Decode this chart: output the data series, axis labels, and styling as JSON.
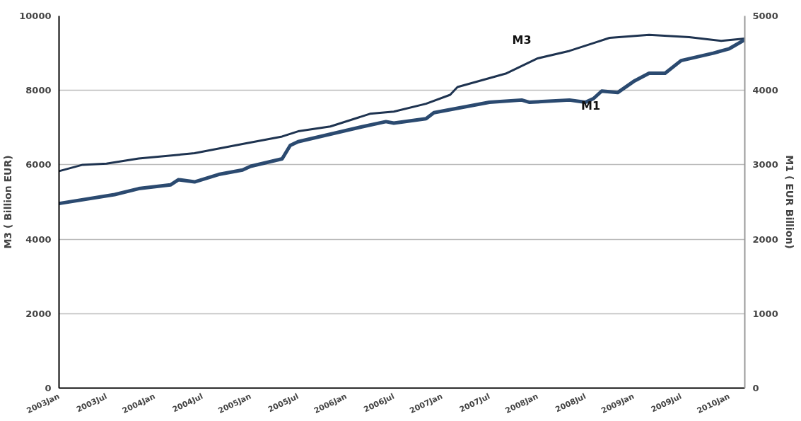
{
  "chart_data": {
    "type": "line",
    "ylabel": "M3 ( Billion EUR)",
    "y2label": "M1 ( EUR Billion)",
    "xlim": [
      "2003-01",
      "2010-03"
    ],
    "xticks": [
      {
        "value": "2003-01",
        "label": "2003Jan"
      },
      {
        "value": "2003-07",
        "label": "2003Jul"
      },
      {
        "value": "2004-01",
        "label": "2004Jan"
      },
      {
        "value": "2004-07",
        "label": "2004Jul"
      },
      {
        "value": "2005-01",
        "label": "2005Jan"
      },
      {
        "value": "2005-07",
        "label": "2005Jul"
      },
      {
        "value": "2006-01",
        "label": "2006Jan"
      },
      {
        "value": "2006-07",
        "label": "2006Jul"
      },
      {
        "value": "2007-01",
        "label": "2007Jan"
      },
      {
        "value": "2007-07",
        "label": "2007Jul"
      },
      {
        "value": "2008-01",
        "label": "2008Jan"
      },
      {
        "value": "2008-07",
        "label": "2008Jul"
      },
      {
        "value": "2009-01",
        "label": "2009Jan"
      },
      {
        "value": "2009-07",
        "label": "2009Jul"
      },
      {
        "value": "2010-01",
        "label": "2010Jan"
      }
    ],
    "ylim": [
      0,
      10000
    ],
    "yticks": [
      0,
      2000,
      4000,
      6000,
      8000,
      10000
    ],
    "y2lim": [
      0,
      5000
    ],
    "y2ticks": [
      0,
      1000,
      2000,
      3000,
      4000,
      5000
    ],
    "grid": "y",
    "marker": "none",
    "line_style": "solid",
    "series": [
      {
        "name": "M3",
        "color": "#1e3350",
        "x": [
          "2003-01",
          "2003-04",
          "2003-07",
          "2003-11",
          "2004-06",
          "2004-12",
          "2005-05",
          "2005-07",
          "2005-11",
          "2006-04",
          "2006-07",
          "2006-11",
          "2007-02",
          "2007-03",
          "2007-09",
          "2008-01",
          "2008-05",
          "2008-08",
          "2008-10",
          "2009-03",
          "2009-08",
          "2009-12",
          "2010-03"
        ],
        "values": [
          5830,
          6000,
          6030,
          6170,
          6310,
          6560,
          6760,
          6900,
          7030,
          7370,
          7430,
          7640,
          7880,
          8090,
          8450,
          8860,
          9060,
          9270,
          9410,
          9490,
          9430,
          9330,
          9390
        ]
      },
      {
        "name": "M1",
        "color": "#2b4a70",
        "axis": "y2",
        "x": [
          "2003-01",
          "2003-08",
          "2003-11",
          "2004-03",
          "2004-04",
          "2004-06",
          "2004-09",
          "2004-12",
          "2005-01",
          "2005-05",
          "2005-06",
          "2005-07",
          "2006-03",
          "2006-06",
          "2006-07",
          "2006-11",
          "2006-12",
          "2007-07",
          "2007-11",
          "2007-12",
          "2008-05",
          "2008-07",
          "2008-08",
          "2008-09",
          "2008-11",
          "2009-01",
          "2009-03",
          "2009-05",
          "2009-07",
          "2009-11",
          "2010-01",
          "2010-03"
        ],
        "values": [
          2480,
          2600,
          2680,
          2730,
          2800,
          2770,
          2870,
          2930,
          2980,
          3080,
          3260,
          3310,
          3510,
          3580,
          3560,
          3620,
          3700,
          3840,
          3870,
          3840,
          3870,
          3840,
          3890,
          3990,
          3970,
          4120,
          4230,
          4230,
          4400,
          4500,
          4560,
          4680
        ]
      }
    ]
  }
}
